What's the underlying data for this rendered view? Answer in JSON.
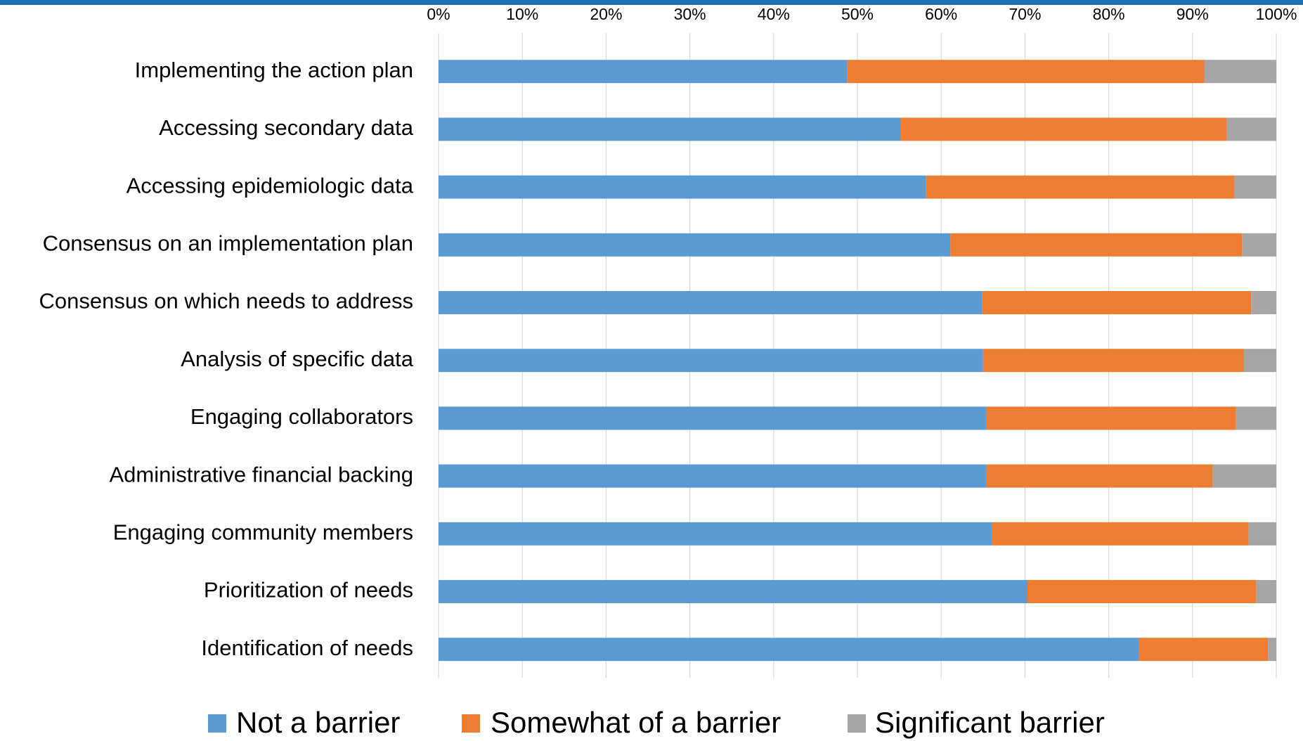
{
  "chart_data": {
    "type": "stacked_barh",
    "categories": [
      "Implementing the action plan",
      "Accessing secondary data",
      "Accessing epidemiologic data",
      "Consensus on an implementation plan",
      "Consensus on which needs to address",
      "Analysis of specific data",
      "Engaging collaborators",
      "Administrative financial backing",
      "Engaging community members",
      "Prioritization of needs",
      "Identification of needs"
    ],
    "series": [
      {
        "name": "Not a barrier",
        "color": "#5b9bd5",
        "values": [
          48.8,
          55.2,
          58.2,
          61.1,
          64.9,
          65.0,
          65.4,
          65.4,
          66.1,
          70.3,
          83.6
        ]
      },
      {
        "name": "Somewhat of a barrier",
        "color": "#ed7d31",
        "values": [
          42.6,
          38.9,
          36.8,
          34.8,
          32.1,
          31.1,
          29.8,
          27.0,
          30.6,
          27.3,
          15.4
        ]
      },
      {
        "name": "Significant barrier",
        "color": "#a5a5a5",
        "values": [
          8.6,
          5.9,
          5.0,
          4.1,
          3.0,
          3.9,
          4.8,
          7.6,
          3.3,
          2.4,
          1.0
        ]
      }
    ],
    "xlim": [
      0,
      100
    ],
    "xticks": [
      {
        "value": 0,
        "label": "0%"
      },
      {
        "value": 10,
        "label": "10%"
      },
      {
        "value": 20,
        "label": "20%"
      },
      {
        "value": 30,
        "label": "30%"
      },
      {
        "value": 40,
        "label": "40%"
      },
      {
        "value": 50,
        "label": "50%"
      },
      {
        "value": 60,
        "label": "60%"
      },
      {
        "value": 70,
        "label": "70%"
      },
      {
        "value": 80,
        "label": "80%"
      },
      {
        "value": 90,
        "label": "90%"
      },
      {
        "value": 100,
        "label": "100%"
      }
    ],
    "grid": true,
    "legend": "bottom"
  }
}
